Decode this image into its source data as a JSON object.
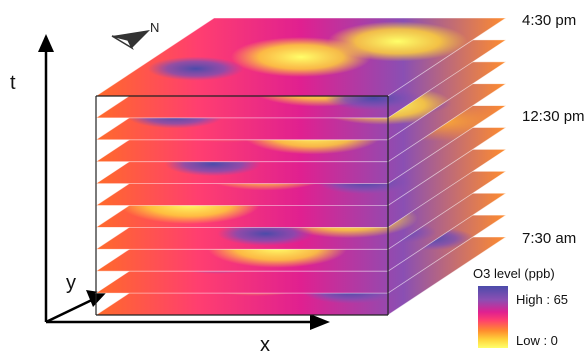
{
  "axes": {
    "t": "t",
    "y": "y",
    "x": "x"
  },
  "north_label": "N",
  "times": {
    "top": "4:30 pm",
    "middle": "12:30 pm",
    "bottom": "7:30 am"
  },
  "legend": {
    "title": "O3 level (ppb)",
    "high": "High : 65",
    "low": "Low : 0"
  },
  "layers": {
    "count": 11
  },
  "colors": {
    "high": "#4b4baa",
    "upper": "#8a4fb3",
    "mid": "#e02090",
    "midlow": "#ff3e70",
    "orange": "#ff8c2e",
    "low": "#ffd23a",
    "lowest": "#ffff6a"
  }
}
